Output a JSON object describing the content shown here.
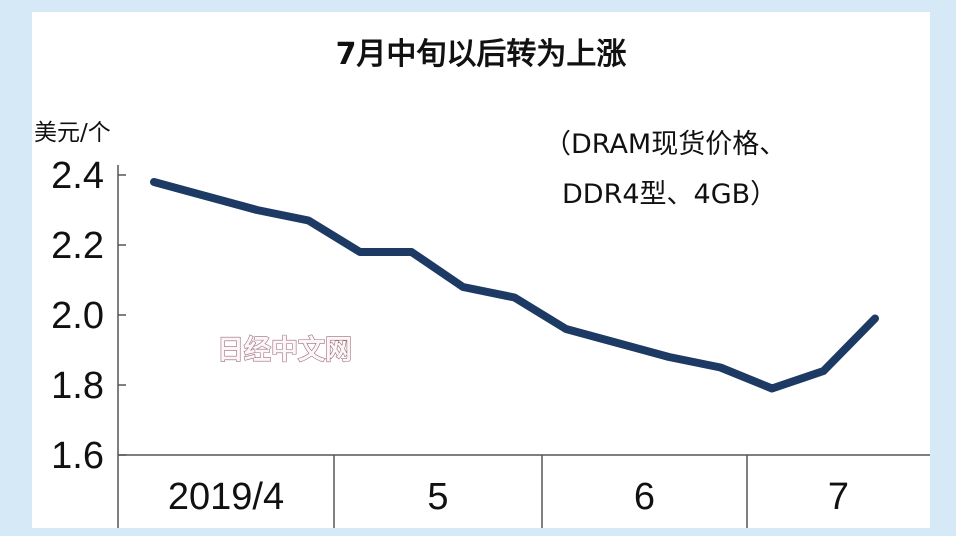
{
  "chart_data": {
    "type": "line",
    "title": "7月中旬以后转为上涨",
    "ylabel": "美元/个",
    "annotation": [
      "（DRAM现货价格、",
      "DDR4型、4GB）"
    ],
    "watermark": "日经中文网",
    "x_tick_labels": [
      "2019/4",
      "5",
      "6",
      "7"
    ],
    "y_ticks": [
      "2.4",
      "2.2",
      "2.0",
      "1.8",
      "1.6"
    ],
    "ylim": [
      1.6,
      2.4
    ],
    "grid": false,
    "line_color": "#1c3a63",
    "series": [
      {
        "x": [
          "2019/4 early",
          "2019/4 mid",
          "2019/4 late",
          "2019/4 end",
          "2019/5 early",
          "2019/5 mid",
          "2019/5 late",
          "2019/5 end",
          "2019/6 early",
          "2019/6 mid",
          "2019/6 late",
          "2019/6 end",
          "2019/7 early",
          "2019/7 mid",
          "2019/7 late"
        ],
        "values": [
          2.38,
          2.34,
          2.3,
          2.27,
          2.18,
          2.18,
          2.08,
          2.05,
          1.96,
          1.92,
          1.88,
          1.85,
          1.79,
          1.84,
          1.99
        ]
      }
    ]
  }
}
